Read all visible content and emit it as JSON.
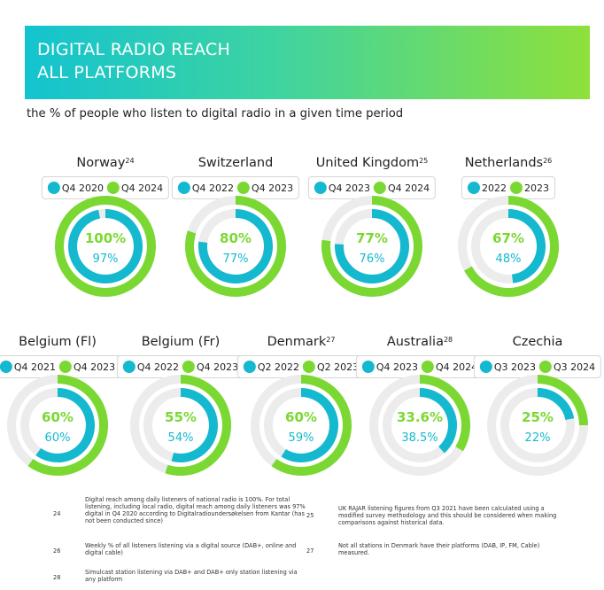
{
  "header": {
    "title": "DIGITAL RADIO REACH\nALL PLATFORMS",
    "subtitle": "the % of people who listen to digital radio in a given time period"
  },
  "colors": {
    "outer": "#7bd832",
    "inner": "#14b8cf",
    "track": "#ececec",
    "banner_start": "#13c3cf",
    "banner_end": "#8fe03a"
  },
  "chart_data": [
    {
      "type": "donut",
      "title": "Norway",
      "footnote_ref": "24",
      "series": [
        {
          "name": "Q4 2020",
          "value": 97,
          "label": "97%"
        },
        {
          "name": "Q4 2024",
          "value": 100,
          "label": "100%"
        }
      ]
    },
    {
      "type": "donut",
      "title": "Switzerland",
      "footnote_ref": "",
      "series": [
        {
          "name": "Q4 2022",
          "value": 77,
          "label": "77%"
        },
        {
          "name": "Q4 2023",
          "value": 80,
          "label": "80%"
        }
      ]
    },
    {
      "type": "donut",
      "title": "United Kingdom",
      "footnote_ref": "25",
      "series": [
        {
          "name": "Q4 2023",
          "value": 76,
          "label": "76%"
        },
        {
          "name": "Q4 2024",
          "value": 77,
          "label": "77%"
        }
      ]
    },
    {
      "type": "donut",
      "title": "Netherlands",
      "footnote_ref": "26",
      "series": [
        {
          "name": "2022",
          "value": 48,
          "label": "48%"
        },
        {
          "name": "2023",
          "value": 67,
          "label": "67%"
        }
      ]
    },
    {
      "type": "donut",
      "title": "Belgium (Fl)",
      "footnote_ref": "",
      "series": [
        {
          "name": "Q4 2021",
          "value": 60,
          "label": "60%"
        },
        {
          "name": "Q4 2023",
          "value": 60,
          "label": "60%"
        }
      ]
    },
    {
      "type": "donut",
      "title": "Belgium (Fr)",
      "footnote_ref": "",
      "series": [
        {
          "name": "Q4 2022",
          "value": 54,
          "label": "54%"
        },
        {
          "name": "Q4 2023",
          "value": 55,
          "label": "55%"
        }
      ]
    },
    {
      "type": "donut",
      "title": "Denmark",
      "footnote_ref": "27",
      "series": [
        {
          "name": "Q2 2022",
          "value": 59,
          "label": "59%"
        },
        {
          "name": "Q2 2023",
          "value": 60,
          "label": "60%"
        }
      ]
    },
    {
      "type": "donut",
      "title": "Australia",
      "footnote_ref": "28",
      "series": [
        {
          "name": "Q4 2023",
          "value": 38.5,
          "label": "38.5%"
        },
        {
          "name": "Q4 2024",
          "value": 33.6,
          "label": "33.6%"
        }
      ]
    },
    {
      "type": "donut",
      "title": "Czechia",
      "footnote_ref": "",
      "series": [
        {
          "name": "Q3 2023",
          "value": 22,
          "label": "22%"
        },
        {
          "name": "Q3 2024",
          "value": 25,
          "label": "25%"
        }
      ]
    }
  ],
  "footnotes": [
    {
      "num": "24",
      "text": "Digital reach among daily listeners of national radio is 100%. For total listening, including local radio, digital reach among daily listeners was 97% digital in Q4 2020 according to Digitalradioundersøkelsen from Kantar (has not been conducted since)"
    },
    {
      "num": "25",
      "text": "UK RAJAR listening figures from Q3 2021 have been calculated using a modified survey methodology and this should be considered when making comparisons against historical data."
    },
    {
      "num": "26",
      "text": "Weekly % of all listeners listening via a digital source (DAB+, online and digital cable)"
    },
    {
      "num": "27",
      "text": "Not all stations in Denmark have their platforms (DAB, IP, FM, Cable) measured."
    },
    {
      "num": "28",
      "text": "Simulcast station listening via DAB+ and DAB+ only station listening via any platform"
    }
  ]
}
